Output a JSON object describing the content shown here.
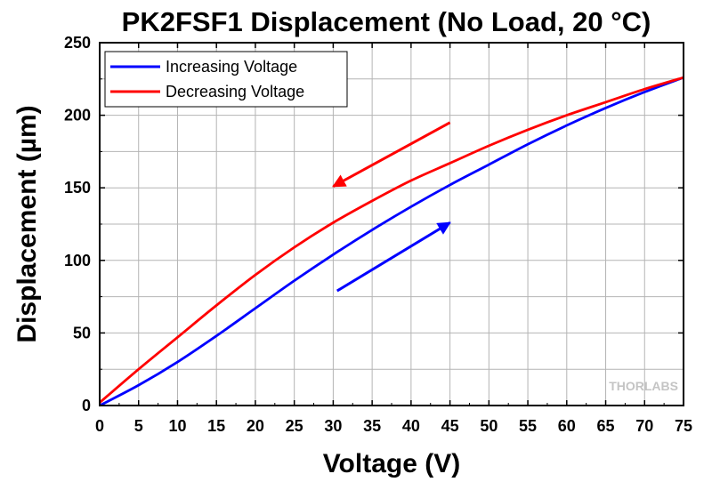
{
  "chart_data": {
    "type": "line",
    "title": "PK2FSF1 Displacement (No Load, 20 °C)",
    "xlabel": "Voltage (V)",
    "ylabel": "Displacement (µm)",
    "xlim": [
      0,
      75
    ],
    "ylim": [
      0,
      250
    ],
    "xticks": [
      0,
      5,
      10,
      15,
      20,
      25,
      30,
      35,
      40,
      45,
      50,
      55,
      60,
      65,
      70,
      75
    ],
    "yticks": [
      0,
      50,
      100,
      150,
      200,
      250
    ],
    "grid": true,
    "legend_position": "top-left",
    "series": [
      {
        "name": "Increasing Voltage",
        "color": "#0000ff",
        "x": [
          0,
          5,
          10,
          15,
          20,
          25,
          30,
          35,
          40,
          45,
          50,
          55,
          60,
          65,
          70,
          75
        ],
        "y": [
          0,
          14,
          30,
          48,
          67,
          86,
          104,
          121,
          137,
          152,
          166,
          180,
          193,
          205,
          216,
          226
        ]
      },
      {
        "name": "Decreasing Voltage",
        "color": "#ff0000",
        "x": [
          0,
          5,
          10,
          15,
          20,
          25,
          30,
          35,
          40,
          45,
          50,
          55,
          60,
          65,
          70,
          75
        ],
        "y": [
          2,
          25,
          47,
          69,
          90,
          109,
          126,
          141,
          155,
          167,
          179,
          190,
          200,
          209,
          218,
          226
        ]
      }
    ],
    "annotations": [
      {
        "type": "arrow",
        "color": "#ff0000",
        "from": [
          45,
          195
        ],
        "to": [
          30,
          151
        ]
      },
      {
        "type": "arrow",
        "color": "#0000ff",
        "from": [
          30.5,
          79
        ],
        "to": [
          45,
          126
        ]
      }
    ],
    "watermark": "THORLABS"
  }
}
